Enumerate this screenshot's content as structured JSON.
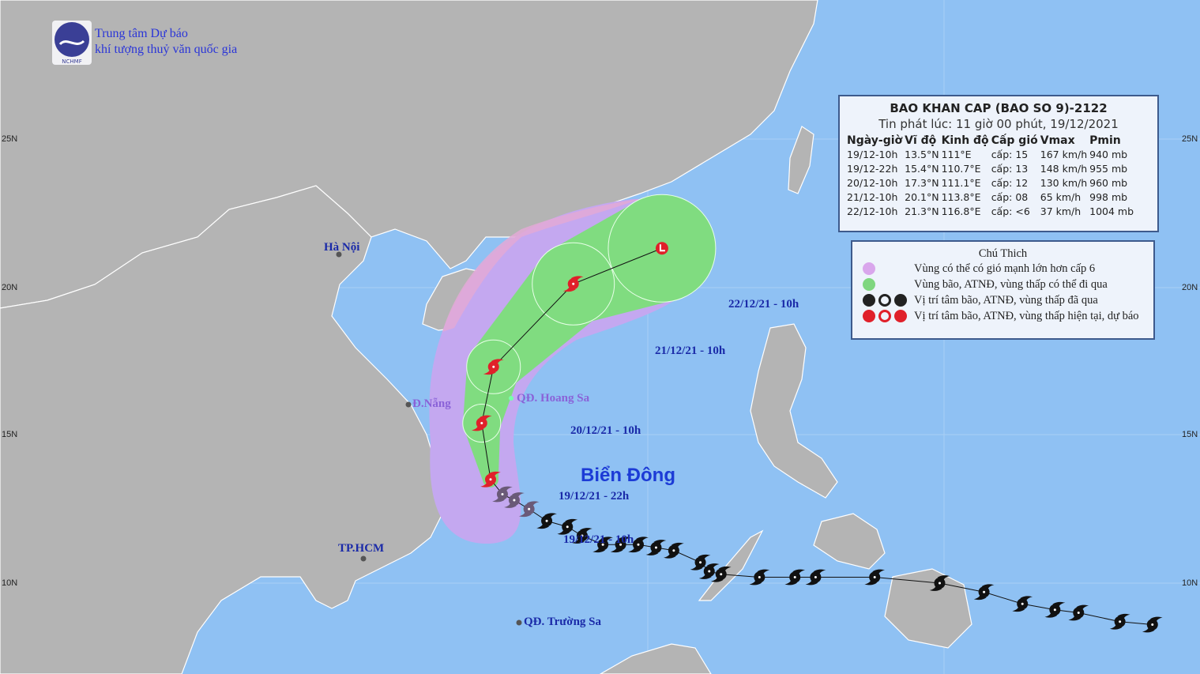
{
  "org": {
    "line1": "Trung tâm Dự báo",
    "line2": "khí tượng thuỷ văn quốc gia",
    "logo_text": "NCHMF"
  },
  "info": {
    "title": "BAO KHAN CAP (BAO SO 9)-2122",
    "issued": "Tin phát lúc: 11 giờ 00 phút, 19/12/2021",
    "headers": [
      "Ngày-giờ",
      "Vĩ độ",
      "Kinh độ",
      "Cấp gió",
      "Vmax",
      "Pmin"
    ],
    "rows": [
      [
        "19/12-10h",
        "13.5°N",
        "111°E",
        "cấp: 15",
        "167 km/h",
        "940 mb"
      ],
      [
        "19/12-22h",
        "15.4°N",
        "110.7°E",
        "cấp: 13",
        "148 km/h",
        "955 mb"
      ],
      [
        "20/12-10h",
        "17.3°N",
        "111.1°E",
        "cấp: 12",
        "130 km/h",
        "960 mb"
      ],
      [
        "21/12-10h",
        "20.1°N",
        "113.8°E",
        "cấp: 08",
        "65 km/h",
        "998 mb"
      ],
      [
        "22/12-10h",
        "21.3°N",
        "116.8°E",
        "cấp: <6",
        "37 km/h",
        "1004 mb"
      ]
    ]
  },
  "legend": {
    "title": "Chú Thich",
    "items": [
      {
        "label": "Vùng có thể có gió mạnh lớn hơn cấp 6",
        "color": "#d9a6ec"
      },
      {
        "label": "Vùng bão, ATNĐ, vùng thấp có thể đi qua",
        "color": "#7fd67f"
      },
      {
        "label": "Vị trí tâm bão, ATNĐ, vùng thấp đã qua",
        "color": "#222222"
      },
      {
        "label": "Vị trí tâm bão, ATNĐ, vùng thấp hiện tại, dự báo",
        "color": "#e0202a"
      }
    ]
  },
  "map": {
    "lat_ticks": [
      "25N",
      "20N",
      "15N",
      "10N"
    ],
    "places": {
      "hanoi": "Hà Nội",
      "danang": "Đ.Nẵng",
      "hoangsa": "QĐ. Hoang Sa",
      "hcm": "TP.HCM",
      "truongsa": "QĐ. Trường Sa",
      "sea": "Biển Đông"
    },
    "time_labels": [
      "22/12/21 - 10h",
      "21/12/21 - 10h",
      "20/12/21 - 10h",
      "19/12/21 - 22h",
      "19/12/21 - 10h"
    ],
    "colors": {
      "ocean": "#8fc1f3",
      "land": "#b4b4b4",
      "wind_zone": "#c4a8f0",
      "coast_zone": "#e3a9d6",
      "track_zone": "#80dc80",
      "forecast": "#e0202a",
      "past": "#111111"
    },
    "forecast_track": [
      {
        "lat": 13.5,
        "lon": 111.0,
        "type": "storm"
      },
      {
        "lat": 15.4,
        "lon": 110.7,
        "type": "storm"
      },
      {
        "lat": 17.3,
        "lon": 111.1,
        "type": "storm"
      },
      {
        "lat": 20.1,
        "lon": 113.8,
        "type": "storm"
      },
      {
        "lat": 21.3,
        "lon": 116.8,
        "type": "low"
      }
    ],
    "past_track": [
      [
        13.0,
        111.4
      ],
      [
        12.8,
        111.8
      ],
      [
        12.5,
        112.3
      ],
      [
        12.1,
        112.9
      ],
      [
        11.9,
        113.6
      ],
      [
        11.6,
        114.1
      ],
      [
        11.3,
        114.8
      ],
      [
        11.3,
        115.4
      ],
      [
        11.3,
        116.0
      ],
      [
        11.2,
        116.6
      ],
      [
        11.1,
        117.2
      ],
      [
        10.7,
        118.1
      ],
      [
        10.4,
        118.4
      ],
      [
        10.3,
        118.8
      ],
      [
        10.2,
        120.1
      ],
      [
        10.2,
        121.3
      ],
      [
        10.2,
        122.0
      ],
      [
        10.2,
        124.0
      ],
      [
        10.0,
        126.2
      ],
      [
        9.7,
        127.7
      ],
      [
        9.3,
        129.0
      ],
      [
        9.1,
        130.1
      ],
      [
        9.0,
        130.9
      ],
      [
        8.7,
        132.3
      ],
      [
        8.6,
        133.4
      ]
    ]
  }
}
